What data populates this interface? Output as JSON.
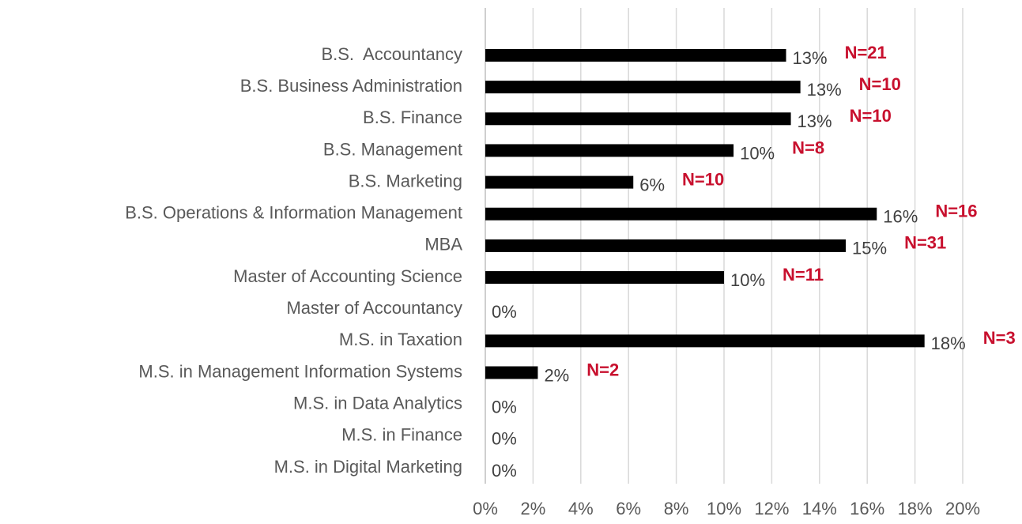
{
  "chart_data": {
    "type": "barh",
    "categories": [
      "B.S.  Accountancy",
      "B.S. Business Administration",
      "B.S. Finance",
      "B.S. Management",
      "B.S. Marketing",
      "B.S. Operations & Information Management",
      "MBA",
      "Master of Accounting Science",
      "Master of Accountancy",
      "M.S. in Taxation",
      "M.S. in Management Information Systems",
      "M.S. in Data Analytics",
      "M.S. in Finance",
      "M.S. in Digital Marketing"
    ],
    "values": [
      12.6,
      13.2,
      12.8,
      10.4,
      6.2,
      16.4,
      15.1,
      10.0,
      0,
      18.4,
      2.2,
      0,
      0,
      0
    ],
    "value_labels": [
      "13%",
      "13%",
      "13%",
      "10%",
      "6%",
      "16%",
      "15%",
      "10%",
      "0%",
      "18%",
      "2%",
      "0%",
      "0%",
      "0%"
    ],
    "annotations": [
      "N=21",
      "N=10",
      "N=10",
      "N=8",
      "N=10",
      "N=16",
      "N=31",
      "N=11",
      null,
      "N=3",
      "N=2",
      null,
      null,
      null
    ],
    "color": "#000000",
    "annotation_color": "#c8102e",
    "grid": true,
    "xlim": [
      0,
      20
    ],
    "xticks": [
      {
        "value": 0,
        "label": "0%"
      },
      {
        "value": 2,
        "label": "2%"
      },
      {
        "value": 4,
        "label": "4%"
      },
      {
        "value": 6,
        "label": "6%"
      },
      {
        "value": 8,
        "label": "8%"
      },
      {
        "value": 10,
        "label": "10%"
      },
      {
        "value": 12,
        "label": "12%"
      },
      {
        "value": 14,
        "label": "14%"
      },
      {
        "value": 16,
        "label": "16%"
      },
      {
        "value": 18,
        "label": "18%"
      },
      {
        "value": 20,
        "label": "20%"
      }
    ]
  }
}
